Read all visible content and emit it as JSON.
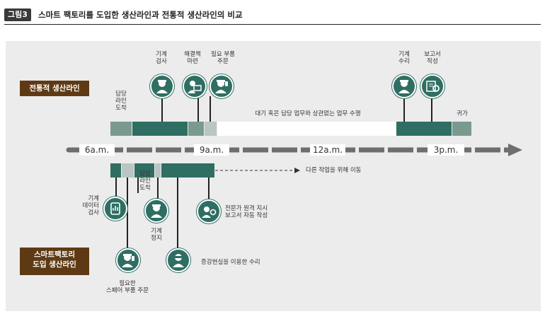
{
  "header": {
    "figure_label": "그림3",
    "title": "스마트 팩토리를 도입한 생산라인과 전통적 생산라인의 비교"
  },
  "traditional": {
    "badge": "전통적 생산라인",
    "labels": {
      "inspect": [
        "기계",
        "검사"
      ],
      "solution": [
        "해결책",
        "마련"
      ],
      "order": [
        "필요 부품",
        "주문"
      ],
      "repair": [
        "기계",
        "수리"
      ],
      "report": [
        "보고서",
        "작성"
      ],
      "arrive": [
        "담당",
        "라인",
        "도착"
      ],
      "idle": "대기 혹은 담당 업무와 상관없는 업무 수행",
      "return": "귀가"
    }
  },
  "timeline": {
    "times": [
      "6a.m.",
      "9a.m.",
      "12a.m.",
      "3p.m."
    ]
  },
  "smart": {
    "badge": [
      "스마트팩토리",
      "도입 생산라인"
    ],
    "move_label": "다른 작업을 위해 이동",
    "labels": {
      "data_check": [
        "기계",
        "데이터",
        "검사"
      ],
      "arrive": [
        "담당",
        "라인",
        "도착"
      ],
      "stop": [
        "기계",
        "정지"
      ],
      "remote": [
        "전문가 원격 지시",
        "보고서 자동 작성"
      ],
      "ar_repair": "증강현실을 이용한 수리",
      "order": [
        "필요한",
        "스페어 부품 주문"
      ]
    }
  },
  "colors": {
    "dark_teal": "#2f6e63",
    "gray_teal": "#7a9a90",
    "light_gray": "#b9c6c1",
    "brown": "#5e3a14",
    "axis": "#6e6e6e"
  },
  "icons": [
    "worker-inspect-icon",
    "worker-laptop-icon",
    "worker-order-icon",
    "worker-repair-icon",
    "report-gear-icon",
    "tablet-data-icon",
    "worker-stop-icon",
    "ar-repair-icon",
    "remote-expert-icon",
    "worker-phone-icon"
  ]
}
